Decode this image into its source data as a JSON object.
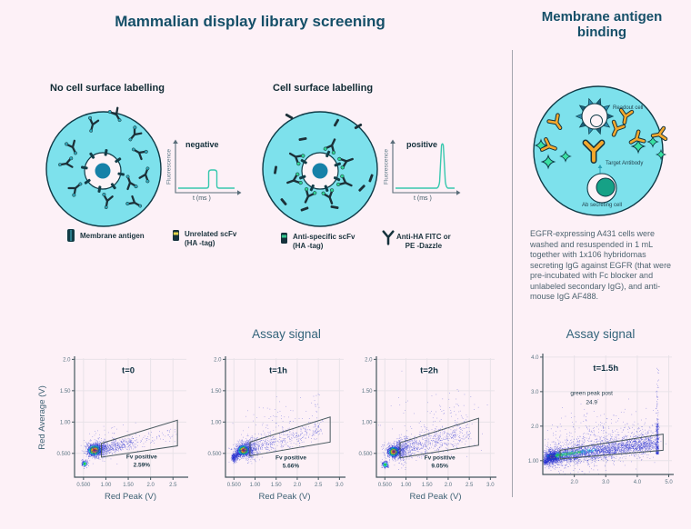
{
  "left_section": {
    "title": "Mammalian display library screening",
    "assay_title": "Assay signal",
    "diagram_no_label": {
      "heading": "No cell surface labelling",
      "plot_label": "negative",
      "axis_y": "Fluorescence",
      "axis_x": "t (ms )"
    },
    "diagram_label": {
      "heading": "Cell surface labelling",
      "plot_label": "positive",
      "axis_y": "Fluorescence",
      "axis_x": "t (ms )"
    },
    "legend": [
      {
        "icon": "membrane-antigen-icon",
        "label": "Membrane antigen"
      },
      {
        "icon": "unrelated-scfv-icon",
        "label": "Unrelated scFv\n(HA -tag)"
      },
      {
        "icon": "anti-specific-scfv-icon",
        "label": "Anti-specific scFv\n(HA -tag)"
      },
      {
        "icon": "anti-ha-antibody-icon",
        "label": "Anti-HA FITC or\nPE -Dazzle"
      }
    ]
  },
  "right_section": {
    "title": "Membrane antigen\nbinding",
    "assay_title": "Assay signal",
    "diagram_labels": {
      "readout_cell": "Readout cell",
      "target_antibody": "Target Antibody",
      "ab_secreting_cell": "Ab secreting cell"
    },
    "description": "EGFR-expressing A431 cells were washed and resuspended in 1 mL together with 1x106 hybridomas secreting IgG against EGFR (that were pre-incubated with Fc blocker and unlabeled secondary IgG), and anti-mouse IgG AF488."
  },
  "colors": {
    "background": "#fdf1f7",
    "title_teal": "#154f68",
    "cell_cyan": "#7de1ec",
    "signal_curve": "#38c8ae",
    "orange_antibody": "#f4a82c",
    "af488_green": "#38e0a2",
    "scatter_blue": "#2630cf"
  },
  "chart_data": [
    {
      "type": "scatter",
      "title": "t=0",
      "title_pos": [
        1.5,
        1.78
      ],
      "xlabel": "Red Peak (V)",
      "ylabel": "Red Average (V)",
      "xlim": [
        0.3,
        2.8
      ],
      "ylim": [
        0.12,
        2.02
      ],
      "xticks": [
        {
          "v": 0.5,
          "label": "0.500"
        },
        {
          "v": 1,
          "label": "1.00"
        },
        {
          "v": 1.5,
          "label": "1.50"
        },
        {
          "v": 2,
          "label": "2.0"
        },
        {
          "v": 2.5,
          "label": "2.5"
        }
      ],
      "yticks": [
        {
          "v": 0.5,
          "label": "0.500"
        },
        {
          "v": 1,
          "label": "1.00"
        },
        {
          "v": 1.5,
          "label": "1.50"
        },
        {
          "v": 2,
          "label": "2.0"
        }
      ],
      "gate": {
        "label": "Fv positive",
        "value": "2.59%",
        "label_pos": [
          1.8,
          0.42
        ],
        "polygon": [
          [
            0.9,
            0.66
          ],
          [
            2.6,
            1.03
          ],
          [
            2.6,
            0.62
          ],
          [
            0.9,
            0.44
          ]
        ]
      },
      "clusters": [
        {
          "kind": "gauss",
          "x": 0.74,
          "y": 0.555,
          "sx": 0.065,
          "sy": 0.038,
          "n": 1500,
          "style": "heat"
        },
        {
          "kind": "gauss",
          "x": 0.78,
          "y": 0.565,
          "sx": 0.13,
          "sy": 0.07,
          "n": 450,
          "style": "blue"
        },
        {
          "kind": "streak",
          "x1": 0.88,
          "y1": 0.58,
          "x2": 2.55,
          "y2": 0.82,
          "spread": 0.06,
          "n": 230,
          "taper": 2.4,
          "style": "blue"
        },
        {
          "kind": "streak",
          "x1": 0.82,
          "y1": 0.57,
          "x2": 1.6,
          "y2": 0.66,
          "spread": 0.045,
          "n": 330,
          "taper": 1.6,
          "style": "blue"
        },
        {
          "kind": "gauss",
          "x": 0.52,
          "y": 0.34,
          "sx": 0.032,
          "sy": 0.026,
          "n": 140,
          "style": "heat2"
        },
        {
          "kind": "gauss",
          "x": 1.1,
          "y": 0.75,
          "sx": 0.35,
          "sy": 0.12,
          "n": 50,
          "style": "blue"
        }
      ]
    },
    {
      "type": "scatter",
      "title": "t=1h",
      "title_pos": [
        1.55,
        1.78
      ],
      "xlabel": "Red Peak (V)",
      "ylabel": "",
      "xlim": [
        0.3,
        3.1
      ],
      "ylim": [
        0.12,
        2.02
      ],
      "xticks": [
        {
          "v": 0.5,
          "label": "0.500"
        },
        {
          "v": 1,
          "label": "1.00"
        },
        {
          "v": 1.5,
          "label": "1.50"
        },
        {
          "v": 2,
          "label": "2.0"
        },
        {
          "v": 2.5,
          "label": "2.5"
        },
        {
          "v": 3,
          "label": "3.0"
        }
      ],
      "yticks": [
        {
          "v": 0.5,
          "label": "0.500"
        },
        {
          "v": 1,
          "label": "1.00"
        },
        {
          "v": 1.5,
          "label": "1.50"
        },
        {
          "v": 2,
          "label": "2.0"
        }
      ],
      "gate": {
        "label": "Fv positive",
        "value": "5.66%",
        "label_pos": [
          1.85,
          0.4
        ],
        "polygon": [
          [
            0.88,
            0.68
          ],
          [
            2.78,
            1.08
          ],
          [
            2.78,
            0.68
          ],
          [
            0.88,
            0.46
          ]
        ]
      },
      "clusters": [
        {
          "kind": "streak",
          "x1": 0.47,
          "y1": 0.42,
          "x2": 0.7,
          "y2": 0.545,
          "spread": 0.035,
          "n": 500,
          "style": "blue"
        },
        {
          "kind": "gauss",
          "x": 0.72,
          "y": 0.555,
          "sx": 0.06,
          "sy": 0.035,
          "n": 1400,
          "style": "heat"
        },
        {
          "kind": "gauss",
          "x": 0.78,
          "y": 0.57,
          "sx": 0.13,
          "sy": 0.075,
          "n": 520,
          "style": "blue"
        },
        {
          "kind": "streak",
          "x1": 0.85,
          "y1": 0.58,
          "x2": 2.6,
          "y2": 0.9,
          "spread": 0.085,
          "n": 520,
          "taper": 2,
          "style": "blue"
        },
        {
          "kind": "gauss",
          "x": 1.45,
          "y": 0.95,
          "sx": 0.45,
          "sy": 0.22,
          "n": 90,
          "style": "blue"
        },
        {
          "kind": "spike",
          "x": 2.45,
          "sx": 0.05,
          "y1": 0.8,
          "y2": 1.45,
          "n": 25,
          "style": "blue"
        }
      ]
    },
    {
      "type": "scatter",
      "title": "t=2h",
      "title_pos": [
        1.55,
        1.78
      ],
      "xlabel": "Red Peak (V)",
      "ylabel": "",
      "xlim": [
        0.3,
        3.1
      ],
      "ylim": [
        0.12,
        2.02
      ],
      "xticks": [
        {
          "v": 0.5,
          "label": "0.500"
        },
        {
          "v": 1,
          "label": "1.00"
        },
        {
          "v": 1.5,
          "label": "1.50"
        },
        {
          "v": 2,
          "label": "2.0"
        },
        {
          "v": 2.5,
          "label": "2.5"
        },
        {
          "v": 3,
          "label": "3.0"
        }
      ],
      "yticks": [
        {
          "v": 0.5,
          "label": "0.500"
        },
        {
          "v": 1,
          "label": "1.00"
        },
        {
          "v": 1.5,
          "label": "1.50"
        },
        {
          "v": 2,
          "label": "2.0"
        }
      ],
      "gate": {
        "label": "Fv positive",
        "value": "9.05%",
        "label_pos": [
          1.8,
          0.4
        ],
        "polygon": [
          [
            0.86,
            0.67
          ],
          [
            2.72,
            1.06
          ],
          [
            2.72,
            0.63
          ],
          [
            0.86,
            0.43
          ]
        ]
      },
      "clusters": [
        {
          "kind": "gauss",
          "x": 0.7,
          "y": 0.53,
          "sx": 0.055,
          "sy": 0.034,
          "n": 1500,
          "style": "heat"
        },
        {
          "kind": "gauss",
          "x": 0.76,
          "y": 0.55,
          "sx": 0.13,
          "sy": 0.07,
          "n": 520,
          "style": "blue"
        },
        {
          "kind": "gauss",
          "x": 0.5,
          "y": 0.325,
          "sx": 0.038,
          "sy": 0.028,
          "n": 170,
          "style": "heat2"
        },
        {
          "kind": "streak",
          "x1": 0.84,
          "y1": 0.56,
          "x2": 2.5,
          "y2": 0.85,
          "spread": 0.1,
          "n": 800,
          "taper": 1.9,
          "style": "blue"
        },
        {
          "kind": "gauss",
          "x": 1.6,
          "y": 1,
          "sx": 0.5,
          "sy": 0.2,
          "n": 80,
          "style": "blue"
        },
        {
          "kind": "spike",
          "x": 2.1,
          "sx": 0.4,
          "y1": 1.1,
          "y2": 1.6,
          "n": 20,
          "style": "blue"
        }
      ]
    },
    {
      "type": "scatter",
      "title": "t=1.5h",
      "title_pos": [
        3.0,
        3.6
      ],
      "xlabel": "",
      "ylabel": "",
      "xlim": [
        1.0,
        5.1
      ],
      "ylim": [
        0.6,
        4.05
      ],
      "xticks": [
        {
          "v": 2,
          "label": "2.0"
        },
        {
          "v": 3,
          "label": "3.0"
        },
        {
          "v": 4,
          "label": "4.0"
        },
        {
          "v": 5,
          "label": "5.0"
        }
      ],
      "yticks": [
        {
          "v": 1,
          "label": "1.00"
        },
        {
          "v": 2,
          "label": "2.0"
        },
        {
          "v": 3,
          "label": "3.0"
        },
        {
          "v": 4,
          "label": "4.0"
        }
      ],
      "gate": {
        "label": "",
        "value": "",
        "label_pos": null,
        "polygon": [
          [
            1.55,
            1.3
          ],
          [
            4.82,
            1.77
          ],
          [
            4.82,
            1.3
          ],
          [
            1.55,
            1.05
          ]
        ]
      },
      "annotation": {
        "lines": [
          "green peak post",
          "24.9"
        ],
        "pos": [
          2.55,
          2.9
        ]
      },
      "clusters": [
        {
          "kind": "gauss",
          "x": 1.28,
          "y": 1.12,
          "sx": 0.07,
          "sy": 0.045,
          "n": 900,
          "style": "heat"
        },
        {
          "kind": "gauss",
          "x": 1.3,
          "y": 1.12,
          "sx": 0.16,
          "sy": 0.1,
          "n": 600,
          "style": "blue"
        },
        {
          "kind": "streak",
          "x1": 1.18,
          "y1": 1.1,
          "x2": 4.55,
          "y2": 1.5,
          "spread": 0.12,
          "n": 2800,
          "taper": 1.25,
          "style": "blue"
        },
        {
          "kind": "streak",
          "x1": 1.3,
          "y1": 1.15,
          "x2": 4.5,
          "y2": 1.62,
          "spread": 0.28,
          "n": 800,
          "taper": 1.2,
          "style": "blue"
        },
        {
          "kind": "streak",
          "x1": 1.42,
          "y1": 1.16,
          "x2": 2.7,
          "y2": 1.32,
          "spread": 0.035,
          "n": 300,
          "style": "cyan"
        },
        {
          "kind": "streak",
          "x1": 1.42,
          "y1": 1.16,
          "x2": 2.2,
          "y2": 1.26,
          "spread": 0.025,
          "n": 160,
          "style": "green"
        },
        {
          "kind": "spike",
          "x": 4.63,
          "sx": 0.025,
          "y1": 1.2,
          "y2": 2.1,
          "n": 320,
          "style": "blue"
        },
        {
          "kind": "spike",
          "x": 4.63,
          "sx": 0.02,
          "y1": 2,
          "y2": 3.7,
          "n": 50,
          "style": "blue"
        },
        {
          "kind": "gauss",
          "x": 2.7,
          "y": 1.95,
          "sx": 0.85,
          "sy": 0.3,
          "n": 140,
          "style": "blue"
        },
        {
          "kind": "streak",
          "x1": 1.05,
          "y1": 0.95,
          "x2": 1.22,
          "y2": 1.08,
          "spread": 0.04,
          "n": 220,
          "style": "blue"
        }
      ]
    }
  ]
}
